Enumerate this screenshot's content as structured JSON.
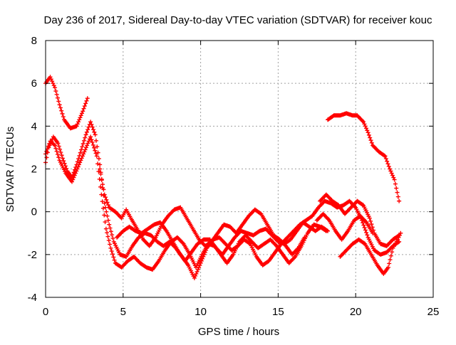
{
  "chart_data": {
    "type": "scatter",
    "title": "Day 236 of 2017, Sidereal Day-to-day VTEC variation (SDTVAR) for receiver kouc",
    "xlabel": "GPS time / hours",
    "ylabel": "SDTVAR / TECUs",
    "xlim": [
      0,
      25
    ],
    "ylim": [
      -4,
      8
    ],
    "xticks": [
      0,
      5,
      10,
      15,
      20,
      25
    ],
    "yticks": [
      -4,
      -2,
      0,
      2,
      4,
      6,
      8
    ],
    "grid": true,
    "marker": "plus",
    "color": "#ff0000",
    "series": [
      {
        "name": "track-1",
        "points": [
          [
            0,
            6.0
          ],
          [
            0.3,
            6.3
          ],
          [
            0.6,
            5.8
          ],
          [
            0.9,
            5.0
          ],
          [
            1.2,
            4.3
          ],
          [
            1.6,
            3.9
          ],
          [
            2.0,
            4.0
          ],
          [
            2.4,
            4.7
          ],
          [
            2.7,
            5.3
          ]
        ]
      },
      {
        "name": "track-2",
        "points": [
          [
            0,
            2.3
          ],
          [
            0.2,
            3.0
          ],
          [
            0.5,
            3.5
          ],
          [
            0.8,
            3.2
          ],
          [
            1.1,
            2.5
          ],
          [
            1.4,
            1.9
          ],
          [
            1.7,
            1.6
          ],
          [
            2.0,
            2.2
          ],
          [
            2.3,
            2.9
          ],
          [
            2.6,
            3.6
          ],
          [
            2.9,
            4.2
          ],
          [
            3.2,
            3.6
          ],
          [
            3.5,
            2.2
          ],
          [
            3.8,
            0.4
          ],
          [
            4.1,
            -0.6
          ],
          [
            4.4,
            -1.4
          ],
          [
            4.8,
            -2.0
          ],
          [
            5.2,
            -2.1
          ],
          [
            5.6,
            -1.6
          ],
          [
            6.0,
            -1.2
          ],
          [
            6.4,
            -1.0
          ],
          [
            6.8,
            -1.1
          ],
          [
            7.2,
            -1.4
          ],
          [
            7.6,
            -1.6
          ],
          [
            8.0,
            -1.4
          ],
          [
            8.4,
            -1.7
          ],
          [
            8.8,
            -2.1
          ],
          [
            9.2,
            -2.5
          ],
          [
            9.6,
            -3.1
          ],
          [
            10.0,
            -2.4
          ],
          [
            10.4,
            -1.7
          ],
          [
            10.8,
            -1.3
          ],
          [
            11.2,
            -1.2
          ],
          [
            11.6,
            -1.5
          ],
          [
            12.0,
            -1.8
          ],
          [
            12.4,
            -1.6
          ],
          [
            12.8,
            -1.3
          ],
          [
            13.2,
            -1.5
          ],
          [
            13.6,
            -2.1
          ],
          [
            14.0,
            -2.5
          ],
          [
            14.4,
            -2.3
          ],
          [
            14.8,
            -1.9
          ],
          [
            15.2,
            -1.5
          ],
          [
            15.6,
            -1.2
          ],
          [
            16.0,
            -0.9
          ],
          [
            16.4,
            -0.6
          ],
          [
            16.8,
            -0.4
          ],
          [
            17.2,
            -0.2
          ],
          [
            17.6,
            0.2
          ],
          [
            18.0,
            0.5
          ],
          [
            18.4,
            0.4
          ],
          [
            18.8,
            0.2
          ],
          [
            19.2,
            0.3
          ],
          [
            19.6,
            0.5
          ],
          [
            20.0,
            0.2
          ],
          [
            20.4,
            -0.4
          ],
          [
            20.8,
            -1.2
          ],
          [
            21.2,
            -1.8
          ],
          [
            21.6,
            -2.0
          ],
          [
            22.0,
            -1.9
          ],
          [
            22.4,
            -1.6
          ],
          [
            22.8,
            -1.4
          ]
        ]
      },
      {
        "name": "track-3",
        "points": [
          [
            0,
            2.7
          ],
          [
            0.3,
            3.3
          ],
          [
            0.6,
            3.1
          ],
          [
            0.9,
            2.4
          ],
          [
            1.3,
            1.8
          ],
          [
            1.7,
            1.4
          ],
          [
            2.1,
            2.1
          ],
          [
            2.5,
            2.8
          ],
          [
            2.9,
            3.5
          ],
          [
            3.3,
            2.6
          ],
          [
            3.6,
            0.8
          ],
          [
            3.9,
            -0.8
          ],
          [
            4.2,
            -1.7
          ],
          [
            4.5,
            -2.4
          ],
          [
            4.9,
            -2.6
          ],
          [
            5.3,
            -2.3
          ],
          [
            5.7,
            -2.1
          ],
          [
            6.1,
            -2.4
          ],
          [
            6.5,
            -2.6
          ],
          [
            6.9,
            -2.7
          ],
          [
            7.3,
            -2.3
          ],
          [
            7.7,
            -1.8
          ],
          [
            8.1,
            -1.4
          ],
          [
            8.5,
            -1.2
          ],
          [
            8.9,
            -1.5
          ],
          [
            9.3,
            -2.0
          ],
          [
            9.7,
            -2.6
          ],
          [
            10.1,
            -2.0
          ],
          [
            10.5,
            -1.5
          ],
          [
            10.9,
            -1.6
          ],
          [
            11.3,
            -2.0
          ],
          [
            11.7,
            -2.4
          ],
          [
            12.1,
            -2.0
          ],
          [
            12.5,
            -1.4
          ],
          [
            12.9,
            -1.1
          ],
          [
            13.3,
            -1.4
          ],
          [
            13.7,
            -1.7
          ],
          [
            14.1,
            -1.5
          ],
          [
            14.5,
            -1.3
          ],
          [
            14.9,
            -1.6
          ],
          [
            15.3,
            -2.0
          ],
          [
            15.7,
            -2.4
          ],
          [
            16.1,
            -2.1
          ],
          [
            16.5,
            -1.6
          ],
          [
            16.9,
            -1.0
          ],
          [
            17.3,
            -0.6
          ],
          [
            17.7,
            -0.7
          ],
          [
            18.1,
            -0.9
          ]
        ]
      },
      {
        "name": "track-4",
        "points": [
          [
            3.5,
            2.0
          ],
          [
            3.8,
            0.8
          ],
          [
            4.1,
            0.2
          ],
          [
            4.5,
            0.0
          ],
          [
            4.9,
            -0.3
          ],
          [
            5.2,
            0.1
          ],
          [
            5.5,
            -0.3
          ],
          [
            5.9,
            -0.8
          ],
          [
            6.3,
            -1.3
          ],
          [
            6.7,
            -1.6
          ],
          [
            7.1,
            -1.2
          ],
          [
            7.5,
            -0.6
          ],
          [
            7.9,
            -0.2
          ],
          [
            8.3,
            0.1
          ],
          [
            8.7,
            0.2
          ],
          [
            9.1,
            -0.3
          ],
          [
            9.5,
            -0.8
          ],
          [
            9.9,
            -1.3
          ],
          [
            10.3,
            -1.6
          ],
          [
            10.7,
            -1.4
          ],
          [
            11.1,
            -1.0
          ],
          [
            11.5,
            -0.6
          ],
          [
            11.9,
            -0.7
          ],
          [
            12.3,
            -1.0
          ],
          [
            12.7,
            -0.6
          ],
          [
            13.1,
            -0.2
          ],
          [
            13.5,
            0.1
          ],
          [
            13.9,
            -0.1
          ],
          [
            14.3,
            -0.6
          ],
          [
            14.7,
            -1.1
          ],
          [
            15.1,
            -1.3
          ],
          [
            15.5,
            -1.6
          ],
          [
            15.9,
            -2.0
          ],
          [
            16.3,
            -1.7
          ],
          [
            16.7,
            -1.2
          ]
        ]
      },
      {
        "name": "track-5",
        "points": [
          [
            4.6,
            -1.2
          ],
          [
            5.0,
            -0.9
          ],
          [
            5.4,
            -0.7
          ],
          [
            5.8,
            -0.9
          ],
          [
            6.2,
            -1.0
          ],
          [
            6.6,
            -0.8
          ],
          [
            7.0,
            -0.6
          ],
          [
            7.4,
            -0.5
          ],
          [
            7.8,
            -0.9
          ],
          [
            8.2,
            -1.4
          ],
          [
            8.6,
            -1.9
          ],
          [
            9.0,
            -2.3
          ],
          [
            9.4,
            -1.9
          ],
          [
            9.8,
            -1.5
          ],
          [
            10.2,
            -1.3
          ],
          [
            10.6,
            -1.3
          ],
          [
            11.0,
            -1.7
          ],
          [
            11.4,
            -2.0
          ],
          [
            11.8,
            -1.6
          ],
          [
            12.2,
            -1.2
          ],
          [
            12.6,
            -0.9
          ],
          [
            13.0,
            -1.0
          ],
          [
            13.4,
            -1.1
          ],
          [
            13.8,
            -0.9
          ],
          [
            14.2,
            -0.8
          ],
          [
            14.6,
            -1.1
          ],
          [
            15.0,
            -1.4
          ],
          [
            15.4,
            -1.5
          ],
          [
            15.8,
            -1.3
          ],
          [
            16.2,
            -0.9
          ],
          [
            16.6,
            -0.5
          ],
          [
            17.0,
            -0.7
          ],
          [
            17.4,
            -0.9
          ],
          [
            17.8,
            -0.7
          ],
          [
            18.2,
            -0.9
          ]
        ]
      },
      {
        "name": "track-6",
        "points": [
          [
            17.7,
            0.5
          ],
          [
            18.1,
            0.8
          ],
          [
            18.5,
            0.5
          ],
          [
            18.9,
            0.3
          ],
          [
            19.3,
            -0.1
          ],
          [
            19.7,
            0.2
          ],
          [
            20.1,
            0.5
          ],
          [
            20.5,
            0.3
          ],
          [
            20.9,
            -0.3
          ],
          [
            21.2,
            -1.0
          ],
          [
            21.6,
            -1.5
          ],
          [
            22.0,
            -1.6
          ],
          [
            22.4,
            -1.3
          ],
          [
            22.8,
            -1.1
          ]
        ]
      },
      {
        "name": "track-7",
        "points": [
          [
            19.0,
            -2.1
          ],
          [
            19.4,
            -1.8
          ],
          [
            19.8,
            -1.5
          ],
          [
            20.2,
            -1.3
          ],
          [
            20.6,
            -1.5
          ],
          [
            21.0,
            -2.0
          ],
          [
            21.4,
            -2.5
          ],
          [
            21.8,
            -2.9
          ],
          [
            22.1,
            -2.6
          ],
          [
            22.4,
            -1.7
          ],
          [
            22.7,
            -1.3
          ],
          [
            22.9,
            -1.0
          ]
        ]
      },
      {
        "name": "track-8",
        "points": [
          [
            18.2,
            4.3
          ],
          [
            18.6,
            4.5
          ],
          [
            19.0,
            4.5
          ],
          [
            19.4,
            4.6
          ],
          [
            19.8,
            4.5
          ],
          [
            20.1,
            4.5
          ],
          [
            20.5,
            4.2
          ],
          [
            20.8,
            3.7
          ],
          [
            21.1,
            3.1
          ],
          [
            21.5,
            2.8
          ],
          [
            21.9,
            2.6
          ],
          [
            22.2,
            2.0
          ],
          [
            22.5,
            1.5
          ],
          [
            22.8,
            0.5
          ]
        ]
      },
      {
        "name": "track-9",
        "points": [
          [
            17.5,
            -0.4
          ],
          [
            17.9,
            -0.1
          ],
          [
            18.3,
            -0.4
          ],
          [
            18.7,
            -0.9
          ],
          [
            19.1,
            -1.3
          ],
          [
            19.5,
            -0.9
          ],
          [
            19.9,
            -0.4
          ],
          [
            20.3,
            -0.2
          ],
          [
            20.7,
            -0.5
          ],
          [
            21.1,
            -1.0
          ]
        ]
      }
    ]
  }
}
